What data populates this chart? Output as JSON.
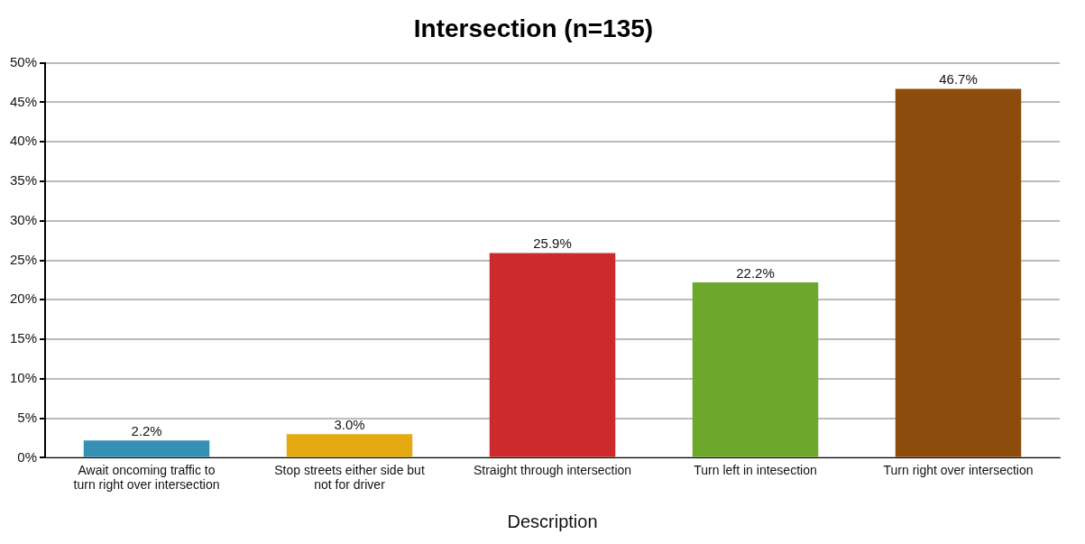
{
  "chart_data": {
    "type": "bar",
    "title": "Intersection (n=135)",
    "xlabel": "Description",
    "categories": [
      "Await oncoming traffic to turn right over intersection",
      "Stop streets either side but not for driver",
      "Straight through intersection",
      "Turn left in intesection",
      "Turn right over intersection"
    ],
    "values": [
      2.2,
      3.0,
      25.9,
      22.2,
      46.7
    ],
    "colors": [
      "#3590b5",
      "#e5a912",
      "#cc2a2c",
      "#6ba82c",
      "#8e4c0c"
    ],
    "value_labels": [
      "2.2%",
      "3.0%",
      "25.9%",
      "22.2%",
      "46.7%"
    ],
    "ylim": [
      0,
      50
    ],
    "yticks": [
      {
        "value": 0,
        "label": "0%"
      },
      {
        "value": 5,
        "label": "5%"
      },
      {
        "value": 10,
        "label": "10%"
      },
      {
        "value": 15,
        "label": "15%"
      },
      {
        "value": 20,
        "label": "20%"
      },
      {
        "value": 25,
        "label": "25%"
      },
      {
        "value": 30,
        "label": "30%"
      },
      {
        "value": 35,
        "label": "35%"
      },
      {
        "value": 40,
        "label": "40%"
      },
      {
        "value": 45,
        "label": "45%"
      },
      {
        "value": 50,
        "label": "50%"
      }
    ],
    "grid": "y",
    "legend": false
  }
}
